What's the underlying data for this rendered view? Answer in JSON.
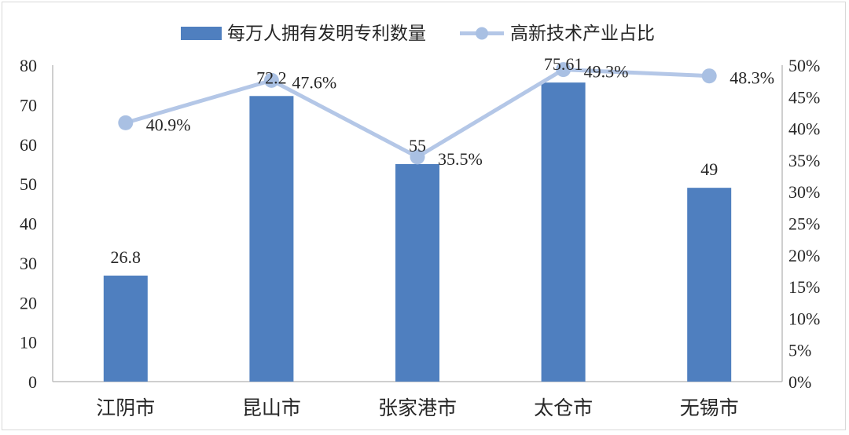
{
  "chart_data": {
    "type": "bar",
    "title": "",
    "categories": [
      "江阴市",
      "昆山市",
      "张家港市",
      "太仓市",
      "无锡市"
    ],
    "series": [
      {
        "name": "每万人拥有发明专利数量",
        "type": "bar",
        "axis": "left",
        "values": [
          26.8,
          72.2,
          55,
          75.61,
          49
        ],
        "labels": [
          "26.8",
          "72.2",
          "55",
          "75.61",
          "49"
        ]
      },
      {
        "name": "高新技术产业占比",
        "type": "line",
        "axis": "right",
        "values": [
          40.9,
          47.6,
          35.5,
          49.3,
          48.3
        ],
        "labels": [
          "40.9%",
          "47.6%",
          "35.5%",
          "49.3%",
          "48.3%"
        ]
      }
    ],
    "y_left": {
      "lim": [
        0,
        80
      ],
      "ticks": [
        "0",
        "10",
        "20",
        "30",
        "40",
        "50",
        "60",
        "70",
        "80"
      ]
    },
    "y_right": {
      "lim": [
        0,
        50
      ],
      "ticks": [
        "0%",
        "5%",
        "10%",
        "15%",
        "20%",
        "25%",
        "30%",
        "35%",
        "40%",
        "45%",
        "50%"
      ]
    },
    "legend_position": "top",
    "grid": false,
    "colors": {
      "bar": "#4f7fbf",
      "line": "#b4c7e7",
      "marker": "#a9c0e3",
      "axis": "#bfbfbf"
    }
  }
}
